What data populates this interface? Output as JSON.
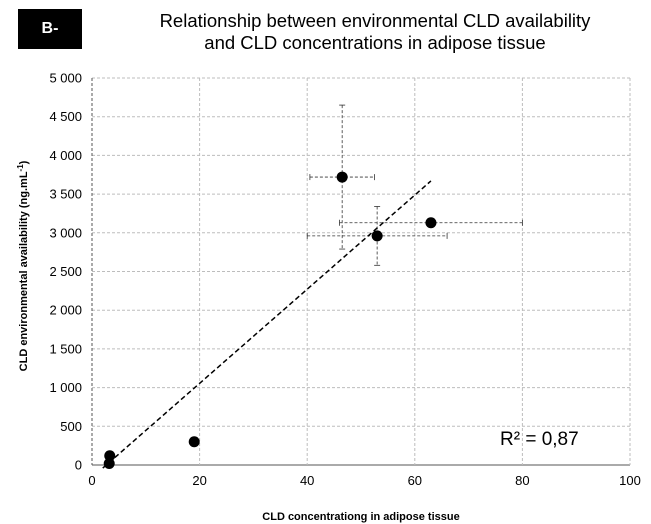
{
  "badge": "B-",
  "chart_data": {
    "type": "scatter",
    "title_line1": "Relationship between environmental CLD availability",
    "title_line2": "and CLD concentrations in adipose tissue",
    "xlabel": "CLD concentrationg in adipose tissue",
    "ylabel": "CLD environmental availability (ng.mL",
    "ylabel_sup": "-1",
    "ylabel_close": ")",
    "xlim": [
      0,
      100
    ],
    "ylim": [
      0,
      5000
    ],
    "x_ticks": [
      "0",
      "20",
      "40",
      "60",
      "80",
      "100"
    ],
    "y_ticks": [
      "0",
      "500",
      "1 000",
      "1 500",
      "2 000",
      "2 500",
      "3 000",
      "3 500",
      "4 000",
      "4 500",
      "5 000"
    ],
    "grid": true,
    "points": [
      {
        "x": 3.2,
        "y": 20
      },
      {
        "x": 3.3,
        "y": 120
      },
      {
        "x": 19,
        "y": 300
      },
      {
        "x": 46.5,
        "y": 3720,
        "xerr": 6,
        "yerr": 930
      },
      {
        "x": 53,
        "y": 2960,
        "xerr": 13,
        "yerr": 380
      },
      {
        "x": 63,
        "y": 3130,
        "xerr": 17,
        "yerr": 0
      }
    ],
    "trendline": {
      "x": [
        2,
        63
      ],
      "y": [
        -40,
        3670
      ],
      "style": "dashed"
    },
    "annotation": "R² = 0,87"
  }
}
